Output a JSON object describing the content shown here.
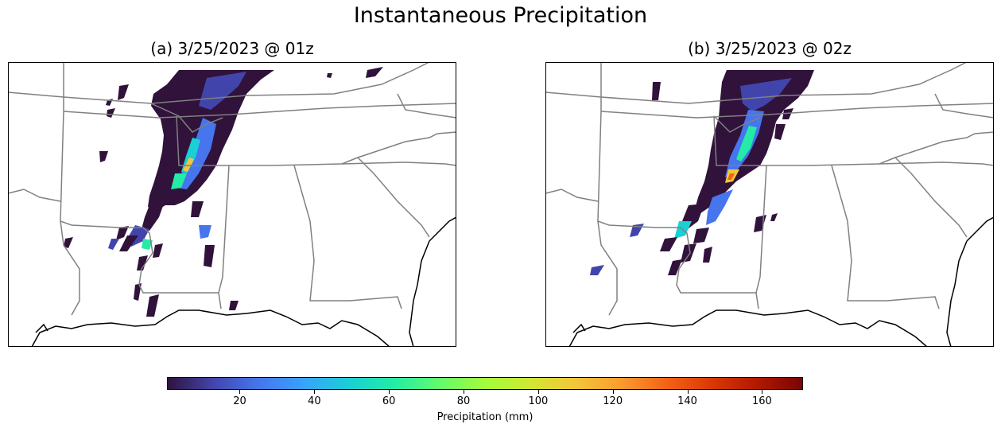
{
  "figure": {
    "title": "Instantaneous Precipitation"
  },
  "panels": [
    {
      "id": "a",
      "title": "(a) 3/25/2023 @ 01z"
    },
    {
      "id": "b",
      "title": "(b) 3/25/2023 @ 02z"
    }
  ],
  "colorbar": {
    "label": "Precipitation (mm)",
    "min": 0.5,
    "max": 171,
    "ticks": [
      20,
      40,
      60,
      80,
      100,
      120,
      140,
      160
    ],
    "colormap": "turbo",
    "stops": [
      "#30123b",
      "#4145ab",
      "#4675ed",
      "#39a2fc",
      "#1bcfd4",
      "#24eca6",
      "#61fc6c",
      "#a4fc3b",
      "#d1e834",
      "#f3c63a",
      "#fe9b2d",
      "#f36315",
      "#d93806",
      "#b11901",
      "#7a0402"
    ]
  },
  "map_colors": {
    "state_borders": "#808080",
    "coastline": "#000000",
    "frame": "#000000"
  }
}
